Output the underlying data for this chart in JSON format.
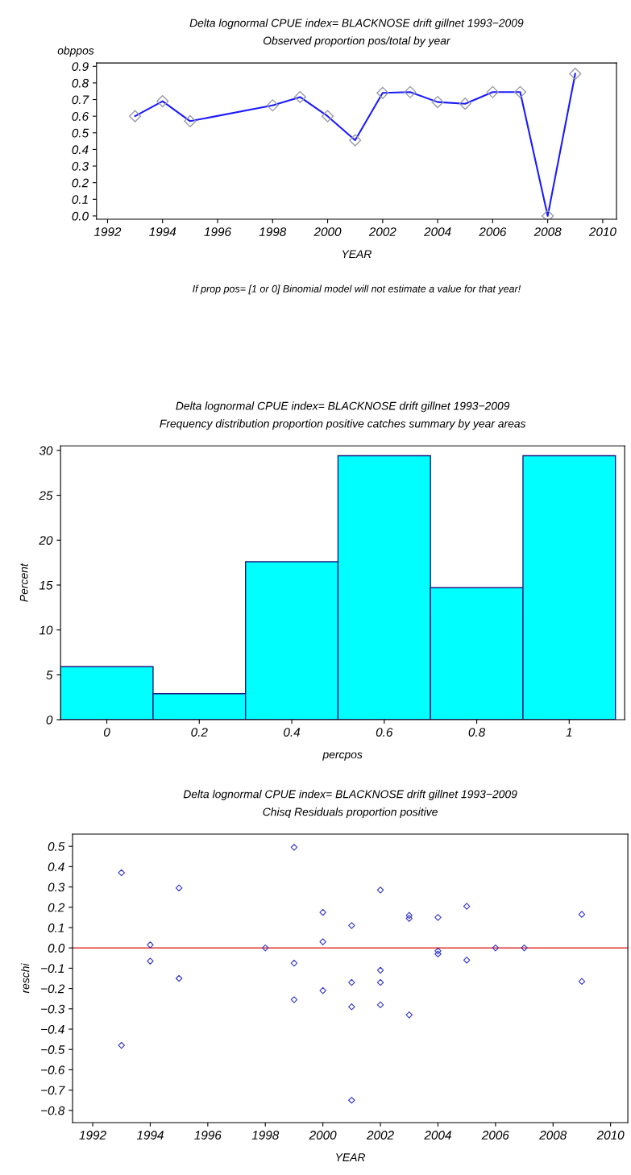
{
  "chart_data": [
    {
      "type": "line",
      "title": "Delta lognormal CPUE index= BLACKNOSE drift gillnet 1993−2009",
      "subtitle": "Observed proportion pos/total by year",
      "xlabel": "YEAR",
      "ylabel": "obppos",
      "annotations": [
        "If prop pos= [1 or 0] Binomial model will not estimate a value for that year!"
      ],
      "x": [
        1993,
        1994,
        1995,
        1998,
        1999,
        2000,
        2001,
        2002,
        2003,
        2004,
        2005,
        2006,
        2007,
        2008,
        2009
      ],
      "series": [
        {
          "color": "#1a1aff",
          "values": [
            0.6,
            0.69,
            0.57,
            0.665,
            0.715,
            0.6,
            0.455,
            0.74,
            0.745,
            0.685,
            0.675,
            0.745,
            0.745,
            0.0,
            0.855
          ]
        }
      ],
      "marker": "diamond",
      "line_style": "solid",
      "xlim": [
        1991.6,
        2010.5
      ],
      "xticks": [
        1992,
        1994,
        1996,
        1998,
        2000,
        2002,
        2004,
        2006,
        2008,
        2010
      ],
      "ylim": [
        -0.02,
        0.92
      ],
      "yticks": [
        {
          "value": 0,
          "label": "0.0"
        },
        0.1,
        0.2,
        0.3,
        0.4,
        0.5,
        0.6,
        0.7,
        0.8,
        0.9
      ],
      "grid": false
    },
    {
      "type": "histogram",
      "title": "Delta lognormal CPUE index= BLACKNOSE drift gillnet 1993−2009",
      "subtitle": "Frequency distribution proportion positive catches summary by year areas",
      "xlabel": "percpos",
      "ylabel": "Percent",
      "bins": [
        -0.1,
        0.1,
        0.3,
        0.5,
        0.7,
        0.9,
        1.1
      ],
      "values": [
        5.9,
        2.9,
        17.6,
        29.4,
        14.7,
        29.4
      ],
      "color": "#00ffff",
      "xlim": [
        -0.1,
        1.12
      ],
      "xticks": [
        0,
        0.2,
        0.4,
        0.6,
        0.8,
        1
      ],
      "ylim": [
        0,
        30.5
      ],
      "yticks": [
        0,
        5,
        10,
        15,
        20,
        25,
        30
      ],
      "grid": false
    },
    {
      "type": "scatter",
      "title": "Delta lognormal CPUE index= BLACKNOSE drift gillnet 1993−2009",
      "subtitle": "Chisq Residuals proportion positive",
      "xlabel": "YEAR",
      "ylabel": "reschi",
      "x": [
        1993,
        1993,
        1994,
        1994,
        1995,
        1995,
        1998,
        1999,
        1999,
        1999,
        2000,
        2000,
        2000,
        2001,
        2001,
        2001,
        2001,
        2002,
        2002,
        2002,
        2002,
        2003,
        2003,
        2003,
        2004,
        2004,
        2004,
        2005,
        2005,
        2006,
        2007,
        2009,
        2009
      ],
      "series": [
        {
          "color": "#3333cc",
          "values": [
            0.37,
            -0.48,
            0.015,
            -0.065,
            0.295,
            -0.15,
            0.0,
            0.495,
            -0.075,
            -0.255,
            0.175,
            0.03,
            -0.21,
            0.11,
            -0.17,
            -0.29,
            -0.75,
            0.285,
            -0.11,
            -0.17,
            -0.28,
            0.16,
            0.145,
            -0.33,
            0.15,
            -0.015,
            -0.03,
            0.205,
            -0.06,
            0.0,
            0.0,
            0.165,
            -0.165
          ]
        }
      ],
      "marker": "diamond",
      "ref_lines": [
        {
          "axis": "y",
          "value": 0,
          "color": "#e03030"
        }
      ],
      "xlim": [
        1991.3,
        2010.6
      ],
      "xticks": [
        1992,
        1994,
        1996,
        1998,
        2000,
        2002,
        2004,
        2006,
        2008,
        2010
      ],
      "ylim": [
        -0.86,
        0.56
      ],
      "yticks": [
        {
          "value": 0.5,
          "label": "0.5"
        },
        {
          "value": 0.4,
          "label": "0.4"
        },
        {
          "value": 0.3,
          "label": "0.3"
        },
        {
          "value": 0.2,
          "label": "0.2"
        },
        {
          "value": 0.1,
          "label": "0.1"
        },
        {
          "value": 0,
          "label": "0.0"
        },
        {
          "value": -0.1,
          "label": "−0.1"
        },
        {
          "value": -0.2,
          "label": "−0.2"
        },
        {
          "value": -0.3,
          "label": "−0.3"
        },
        {
          "value": -0.4,
          "label": "−0.4"
        },
        {
          "value": -0.5,
          "label": "−0.5"
        },
        {
          "value": -0.6,
          "label": "−0.6"
        },
        {
          "value": -0.7,
          "label": "−0.7"
        },
        {
          "value": -0.8,
          "label": "−0.8"
        }
      ],
      "grid": false
    }
  ]
}
